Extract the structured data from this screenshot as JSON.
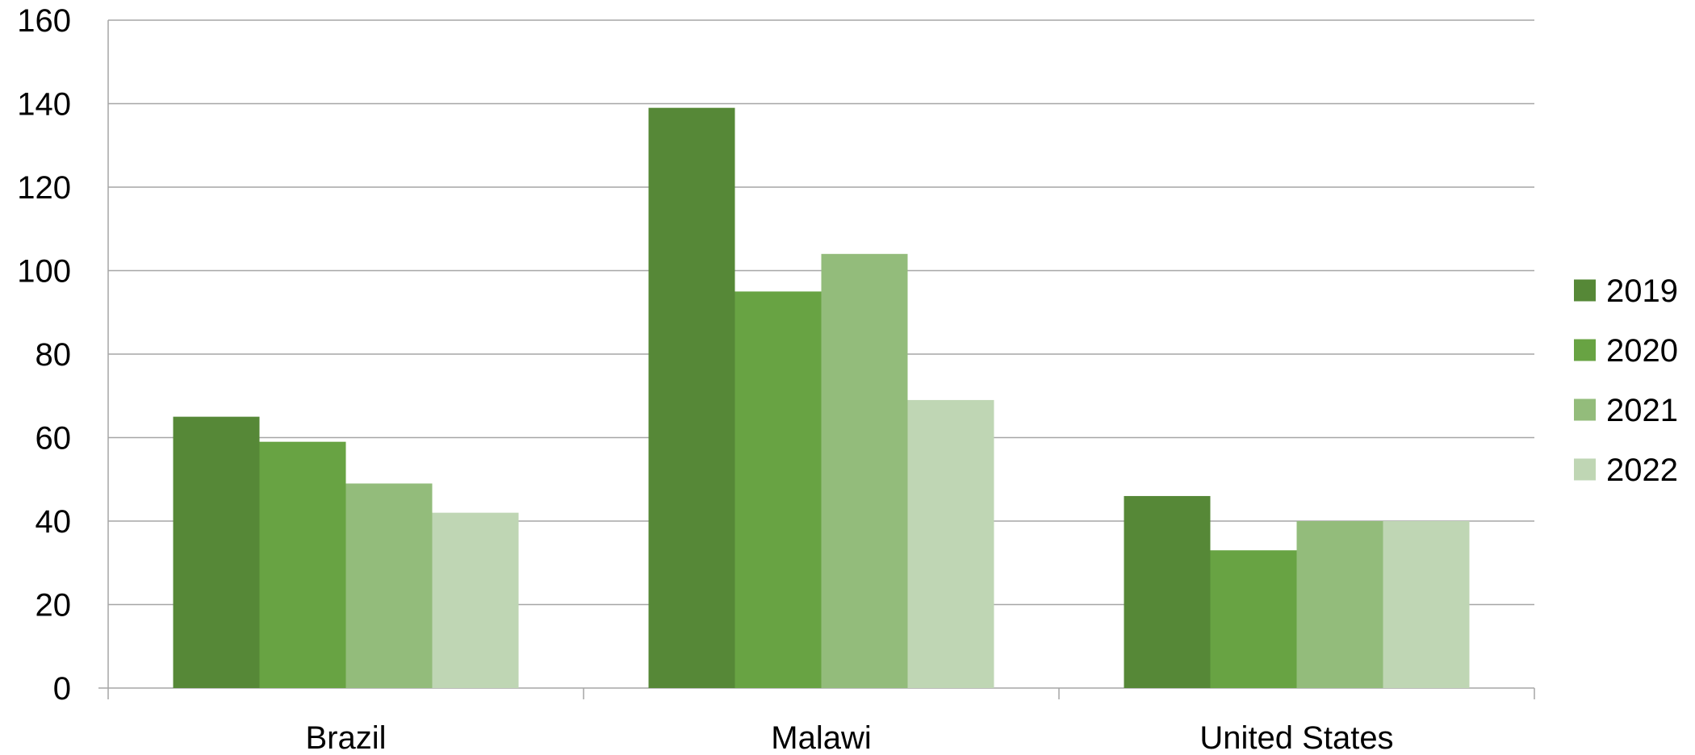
{
  "chart_data": {
    "type": "bar",
    "categories": [
      "Brazil",
      "Malawi",
      "United States"
    ],
    "series": [
      {
        "name": "2019",
        "values": [
          65,
          139,
          46
        ],
        "color": "#568837"
      },
      {
        "name": "2020",
        "values": [
          59,
          95,
          33
        ],
        "color": "#68a343"
      },
      {
        "name": "2021",
        "values": [
          49,
          104,
          40
        ],
        "color": "#93bc7b"
      },
      {
        "name": "2022",
        "values": [
          42,
          69,
          40
        ],
        "color": "#bfd6b4"
      }
    ],
    "title": "",
    "xlabel": "",
    "ylabel": "",
    "ylim": [
      0,
      160
    ],
    "yticks": [
      "0",
      "20",
      "40",
      "60",
      "80",
      "100",
      "120",
      "140",
      "160"
    ],
    "grid": true,
    "gridline_color": "#a6a6a6",
    "legend_position": "right"
  }
}
